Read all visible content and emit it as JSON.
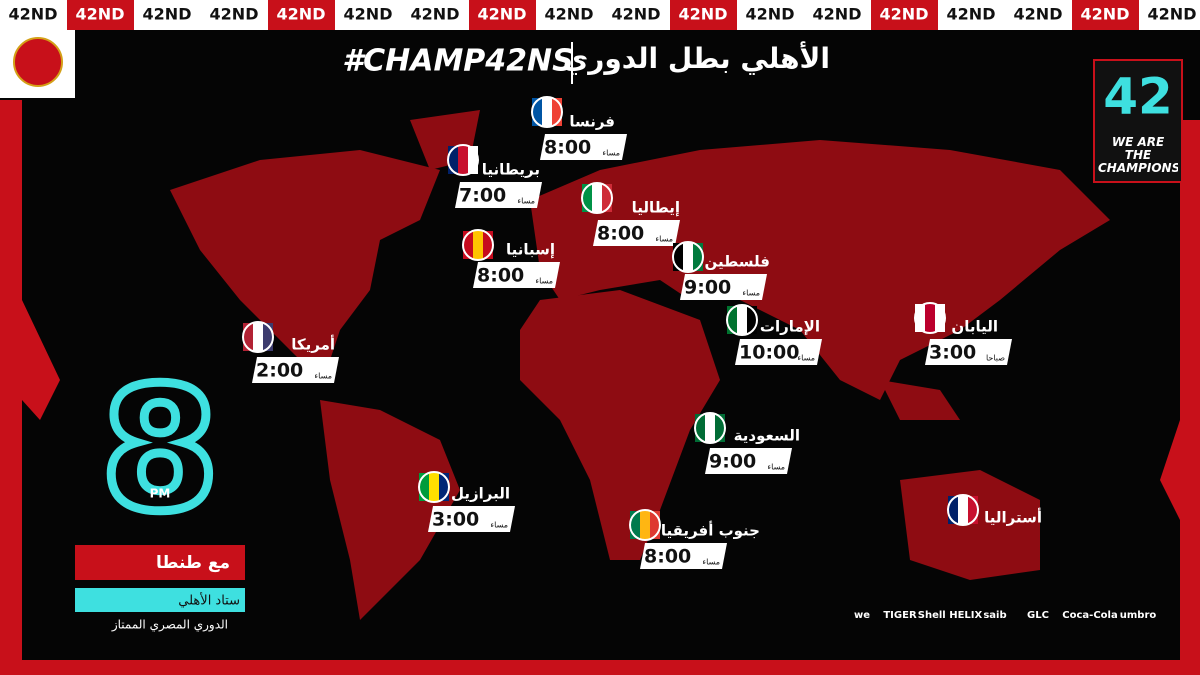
{
  "banner": {
    "label": "42ND"
  },
  "header": {
    "title": "الأهلي بطل الدوري",
    "hashtag": "#CHAMP42NS"
  },
  "badge": {
    "number": "42",
    "slogan": "WE ARE THE CHAMPIONS"
  },
  "countries": [
    {
      "name": "فرنسا",
      "time": "8:00",
      "period": "مساء"
    },
    {
      "name": "بريطانيا",
      "time": "7:00",
      "period": "مساء"
    },
    {
      "name": "إيطاليا",
      "time": "8:00",
      "period": "مساء"
    },
    {
      "name": "إسبانيا",
      "time": "8:00",
      "period": "مساء"
    },
    {
      "name": "فلسطين",
      "time": "9:00",
      "period": "مساء"
    },
    {
      "name": "الإمارات",
      "time": "10:00",
      "period": "مساء"
    },
    {
      "name": "اليابان",
      "time": "3:00",
      "period": "صباحا"
    },
    {
      "name": "أمريكا",
      "time": "2:00",
      "period": "مساء"
    },
    {
      "name": "السعودية",
      "time": "9:00",
      "period": "مساء"
    },
    {
      "name": "البرازيل",
      "time": "3:00",
      "period": "مساء"
    },
    {
      "name": "جنوب أفريقيا",
      "time": "8:00",
      "period": "مساء"
    },
    {
      "name": "أستراليا"
    }
  ],
  "kickoff": {
    "hour": "8",
    "period": "PM"
  },
  "match": {
    "opponent": "مع طنطا",
    "stadium": "ستاد الأهلي",
    "league": "الدوري المصري الممتاز"
  },
  "sponsors": [
    "we",
    "TIGER",
    "Shell HELIX",
    "saib",
    "GLC",
    "Coca-Cola",
    "umbro"
  ]
}
